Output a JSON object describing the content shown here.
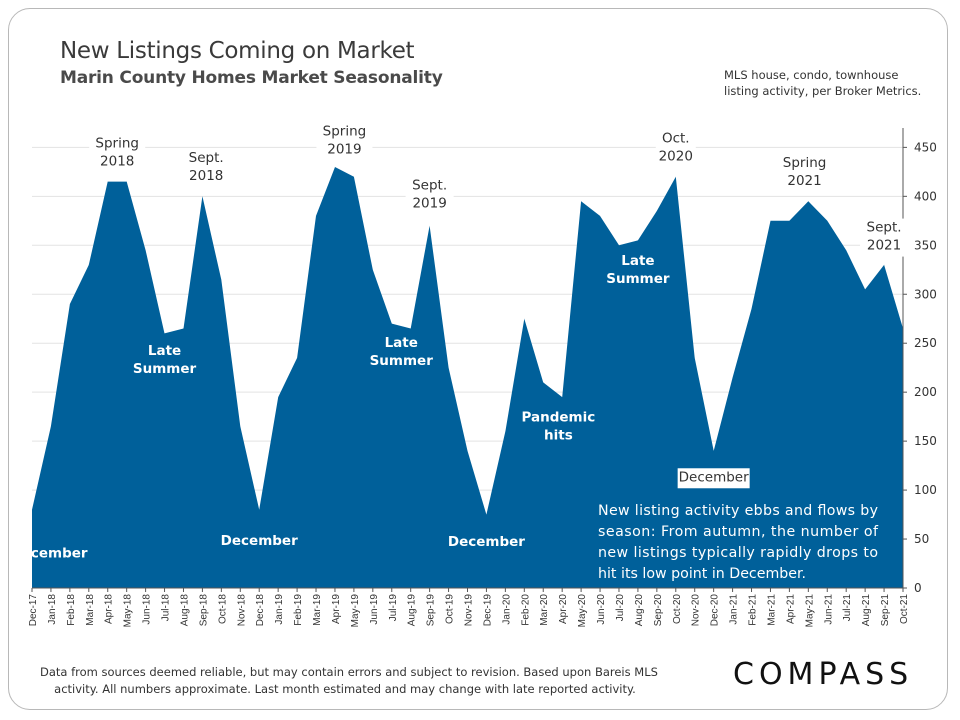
{
  "header": {
    "title": "New Listings Coming on Market",
    "subtitle": "Marin County Homes Market Seasonality",
    "note_lines": [
      "MLS house, condo, townhouse",
      "listing activity, per Broker Metrics."
    ]
  },
  "footer": {
    "lines": [
      "Data from sources deemed reliable, but may contain errors and subject to revision. Based upon Bareis MLS",
      "activity. All numbers approximate. Last month estimated and may change with late reported activity."
    ],
    "logo": "COMPASS"
  },
  "colors": {
    "area": "#00609a",
    "grid": "#e3e3e3",
    "label_on_area": "#ffffff",
    "label_off_area": "#333333"
  },
  "chart_data": {
    "type": "area",
    "categories": [
      "Dec-17",
      "Jan-18",
      "Feb-18",
      "Mar-18",
      "Apr-18",
      "May-18",
      "Jun-18",
      "Jul-18",
      "Aug-18",
      "Sep-18",
      "Oct-18",
      "Nov-18",
      "Dec-18",
      "Jan-19",
      "Feb-19",
      "Mar-19",
      "Apr-19",
      "May-19",
      "Jun-19",
      "Jul-19",
      "Aug-19",
      "Sep-19",
      "Oct-19",
      "Nov-19",
      "Dec-19",
      "Jan-20",
      "Feb-20",
      "Mar-20",
      "Apr-20",
      "May-20",
      "Jun-20",
      "Jul-20",
      "Aug-20",
      "Sep-20",
      "Oct-20",
      "Nov-20",
      "Dec-20",
      "Jan-21",
      "Feb-21",
      "Mar-21",
      "Apr-21",
      "May-21",
      "Jun-21",
      "Jul-21",
      "Aug-21",
      "Sep-21",
      "Oct-21"
    ],
    "values": [
      80,
      165,
      290,
      330,
      415,
      415,
      345,
      260,
      265,
      400,
      315,
      165,
      80,
      195,
      235,
      380,
      430,
      420,
      325,
      270,
      265,
      370,
      225,
      140,
      75,
      160,
      275,
      210,
      195,
      395,
      380,
      350,
      355,
      385,
      420,
      235,
      140,
      215,
      285,
      375,
      375,
      395,
      375,
      345,
      305,
      330,
      265
    ],
    "y_ticks": [
      0,
      50,
      100,
      150,
      200,
      250,
      300,
      350,
      400,
      450
    ],
    "ylim": [
      0,
      480
    ],
    "y_axis_side": "right",
    "grid": true,
    "annotations": [
      {
        "lines": [
          "Spring",
          "2018"
        ],
        "month": 4.5,
        "value": 450,
        "style": "off"
      },
      {
        "lines": [
          "Sept.",
          "2018"
        ],
        "month": 9.2,
        "value": 435,
        "style": "off"
      },
      {
        "lines": [
          "Late",
          "Summer"
        ],
        "month": 7.0,
        "value": 238,
        "style": "on"
      },
      {
        "lines": [
          "December"
        ],
        "month": 0.9,
        "value": 31,
        "style": "on"
      },
      {
        "lines": [
          "December"
        ],
        "month": 12.0,
        "value": 44,
        "style": "on"
      },
      {
        "lines": [
          "Spring",
          "2019"
        ],
        "month": 16.5,
        "value": 462,
        "style": "off"
      },
      {
        "lines": [
          "Late",
          "Summer"
        ],
        "month": 19.5,
        "value": 246,
        "style": "on"
      },
      {
        "lines": [
          "Sept.",
          "2019"
        ],
        "month": 21.0,
        "value": 407,
        "style": "off"
      },
      {
        "lines": [
          "December"
        ],
        "month": 24.0,
        "value": 43,
        "style": "on"
      },
      {
        "lines": [
          "Pandemic",
          "hits"
        ],
        "month": 27.8,
        "value": 170,
        "style": "on"
      },
      {
        "lines": [
          "Late",
          "Summer"
        ],
        "month": 32.0,
        "value": 330,
        "style": "on"
      },
      {
        "lines": [
          "Oct.",
          "2020"
        ],
        "month": 34.0,
        "value": 455,
        "style": "off"
      },
      {
        "lines": [
          "December"
        ],
        "month": 36.0,
        "value": 109,
        "style": "off"
      },
      {
        "lines": [
          "Spring",
          "2021"
        ],
        "month": 40.8,
        "value": 430,
        "style": "off"
      },
      {
        "lines": [
          "Sept.",
          "2021"
        ],
        "month": 45.0,
        "value": 364,
        "style": "off"
      }
    ],
    "callout_lines": [
      "New listing activity ebbs and flows by",
      "season: From autumn, the number of",
      "new listings typically rapidly drops to",
      "hit its low point in December."
    ]
  }
}
